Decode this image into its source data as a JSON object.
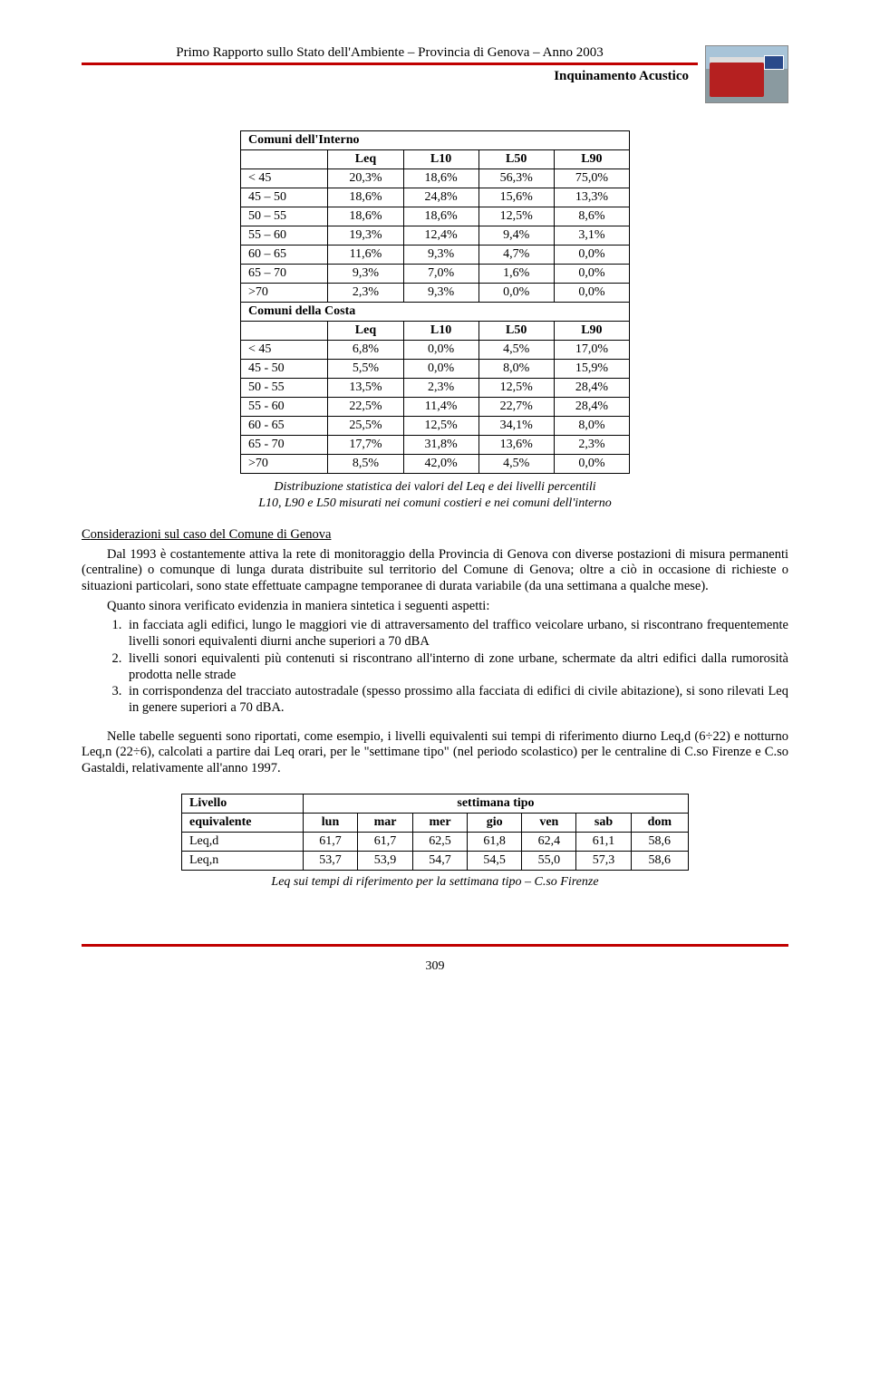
{
  "header": {
    "title": "Primo Rapporto sullo Stato dell'Ambiente – Provincia di Genova – Anno 2003",
    "subtitle": "Inquinamento Acustico"
  },
  "table1": {
    "section_a": "Comuni dell'Interno",
    "cols": [
      "",
      "Leq",
      "L10",
      "L50",
      "L90"
    ],
    "rows_a": [
      [
        "< 45",
        "20,3%",
        "18,6%",
        "56,3%",
        "75,0%"
      ],
      [
        "45 – 50",
        "18,6%",
        "24,8%",
        "15,6%",
        "13,3%"
      ],
      [
        "50 – 55",
        "18,6%",
        "18,6%",
        "12,5%",
        "8,6%"
      ],
      [
        "55 – 60",
        "19,3%",
        "12,4%",
        "9,4%",
        "3,1%"
      ],
      [
        "60 – 65",
        "11,6%",
        "9,3%",
        "4,7%",
        "0,0%"
      ],
      [
        "65 – 70",
        "9,3%",
        "7,0%",
        "1,6%",
        "0,0%"
      ],
      [
        ">70",
        "2,3%",
        "9,3%",
        "0,0%",
        "0,0%"
      ]
    ],
    "section_b": "Comuni della Costa",
    "rows_b": [
      [
        "< 45",
        "6,8%",
        "0,0%",
        "4,5%",
        "17,0%"
      ],
      [
        "45 - 50",
        "5,5%",
        "0,0%",
        "8,0%",
        "15,9%"
      ],
      [
        "50 - 55",
        "13,5%",
        "2,3%",
        "12,5%",
        "28,4%"
      ],
      [
        "55 - 60",
        "22,5%",
        "11,4%",
        "22,7%",
        "28,4%"
      ],
      [
        "60 - 65",
        "25,5%",
        "12,5%",
        "34,1%",
        "8,0%"
      ],
      [
        "65 - 70",
        "17,7%",
        "31,8%",
        "13,6%",
        "2,3%"
      ],
      [
        ">70",
        "8,5%",
        "42,0%",
        "4,5%",
        "0,0%"
      ]
    ],
    "caption_l1": "Distribuzione statistica dei valori del Leq e dei livelli percentili",
    "caption_l2": "L10, L90 e L50 misurati nei comuni costieri e nei comuni dell'interno"
  },
  "body": {
    "u1": "C",
    "u2": "onsiderazioni sul caso del Comune di Genova",
    "p1": "Dal 1993 è costantemente attiva la rete di monitoraggio della Provincia di Genova con diverse postazioni di misura permanenti (centraline) o comunque di lunga durata distribuite sul territorio del Comune di Genova; oltre a ciò in occasione di richieste o situazioni particolari, sono state effettuate campagne temporanee di durata variabile (da una settimana a qualche mese).",
    "p2": "Quanto sinora verificato evidenzia in maniera sintetica i seguenti aspetti:",
    "li1": "in facciata agli edifici, lungo le maggiori vie di attraversamento del traffico veicolare urbano, si riscontrano frequentemente livelli sonori equivalenti diurni anche superiori a 70 dBA",
    "li2": "livelli sonori equivalenti più contenuti si riscontrano all'interno di zone urbane, schermate da altri edifici dalla rumorosità prodotta nelle strade",
    "li3": "in corrispondenza del tracciato autostradale (spesso prossimo alla facciata di edifici di civile abitazione), si sono rilevati Leq in genere superiori a 70 dBA.",
    "p3": "Nelle tabelle seguenti sono riportati, come esempio, i livelli equivalenti sui tempi di riferimento diurno Leq,d (6÷22) e notturno Leq,n (22÷6), calcolati a partire dai Leq orari, per le \"settimane tipo\" (nel periodo scolastico) per le centraline di C.so Firenze e C.so Gastaldi,  relativamente all'anno 1997."
  },
  "table2": {
    "head_top_left": "Livello",
    "head_top_span": "settimana tipo",
    "cols": [
      "equivalente",
      "lun",
      "mar",
      "mer",
      "gio",
      "ven",
      "sab",
      "dom"
    ],
    "rows": [
      [
        "Leq,d",
        "61,7",
        "61,7",
        "62,5",
        "61,8",
        "62,4",
        "61,1",
        "58,6"
      ],
      [
        "Leq,n",
        "53,7",
        "53,9",
        "54,7",
        "54,5",
        "55,0",
        "57,3",
        "58,6"
      ]
    ],
    "caption": "Leq sui tempi di riferimento per la settimana tipo – C.so Firenze"
  },
  "page_number": "309"
}
